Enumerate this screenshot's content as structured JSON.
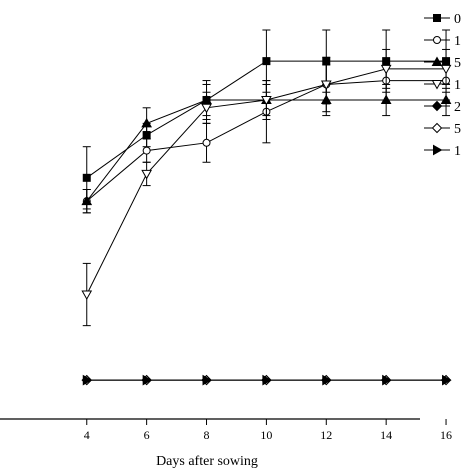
{
  "chart_data": {
    "type": "line",
    "xlabel": "Days after sowing",
    "ylabel": "",
    "x": [
      4,
      6,
      8,
      10,
      12,
      14,
      16
    ],
    "xlim": [
      0,
      17
    ],
    "ylim": [
      0,
      100
    ],
    "grid": false,
    "legend_position": "top-right",
    "series": [
      {
        "name": "0",
        "marker": "square-filled",
        "values": [
          62,
          73,
          82,
          92,
          92,
          92,
          92
        ],
        "errors": [
          8,
          3,
          5,
          8,
          8,
          8,
          8
        ]
      },
      {
        "name": "1",
        "marker": "circle-open",
        "values": [
          56,
          69,
          71,
          79,
          86,
          87,
          87
        ],
        "errors": [
          3,
          3,
          5,
          8,
          7,
          5,
          5
        ]
      },
      {
        "name": "5",
        "marker": "triangle-up-filled",
        "values": [
          56,
          76,
          82,
          82,
          82,
          82,
          82
        ],
        "errors": [
          3,
          4,
          4,
          4,
          4,
          4,
          4
        ]
      },
      {
        "name": "1",
        "marker": "triangle-down-open",
        "values": [
          32,
          63,
          80,
          82,
          86,
          90,
          90
        ],
        "errors": [
          8,
          3,
          4,
          5,
          5,
          5,
          5
        ]
      },
      {
        "name": "2",
        "marker": "diamond-filled",
        "values": [
          10,
          10,
          10,
          10,
          10,
          10,
          10
        ],
        "errors": [
          0,
          0,
          0,
          0,
          0,
          0,
          0
        ]
      },
      {
        "name": "5",
        "marker": "diamond-open",
        "values": [
          10,
          10,
          10,
          10,
          10,
          10,
          10
        ],
        "errors": [
          0,
          0,
          0,
          0,
          0,
          0,
          0
        ]
      },
      {
        "name": "1",
        "marker": "triangle-right-filled",
        "values": [
          10,
          10,
          10,
          10,
          10,
          10,
          10
        ],
        "errors": [
          0,
          0,
          0,
          0,
          0,
          0,
          0
        ]
      }
    ]
  }
}
